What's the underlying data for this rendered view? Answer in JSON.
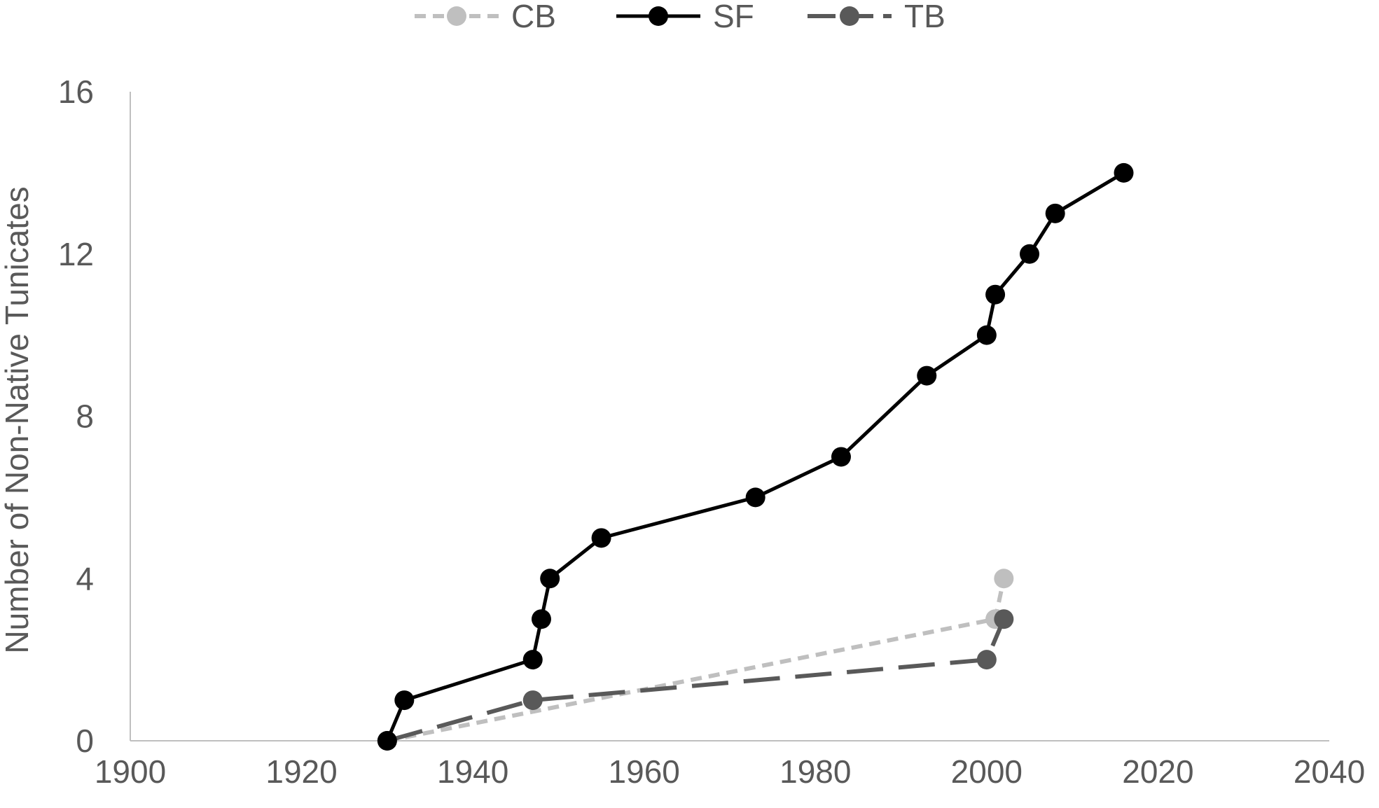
{
  "chart_data": {
    "type": "line",
    "title": "",
    "xlabel": "",
    "ylabel": "Number of Non-Native Tunicates",
    "xlim": [
      1900,
      2040
    ],
    "ylim": [
      0,
      16
    ],
    "x_ticks": [
      "1900",
      "1920",
      "1940",
      "1960",
      "1980",
      "2000",
      "2020",
      "2040"
    ],
    "y_ticks": [
      "0",
      "4",
      "8",
      "12",
      "16"
    ],
    "grid": false,
    "legend_position": "top",
    "series": [
      {
        "name": "CB",
        "color": "#bfbfbf",
        "line_style": "dotted",
        "x": [
          1930,
          2001,
          2002
        ],
        "y": [
          0,
          3,
          4
        ]
      },
      {
        "name": "SF",
        "color": "#000000",
        "line_style": "solid",
        "x": [
          1930,
          1932,
          1947,
          1948,
          1949,
          1955,
          1973,
          1983,
          1993,
          2000,
          2001,
          2005,
          2008,
          2016
        ],
        "y": [
          0,
          1,
          2,
          3,
          4,
          5,
          6,
          7,
          9,
          10,
          11,
          12,
          13,
          14
        ]
      },
      {
        "name": "TB",
        "color": "#595959",
        "line_style": "dashed",
        "x": [
          1930,
          1947,
          2000,
          2002
        ],
        "y": [
          0,
          1,
          2,
          3
        ]
      }
    ]
  }
}
